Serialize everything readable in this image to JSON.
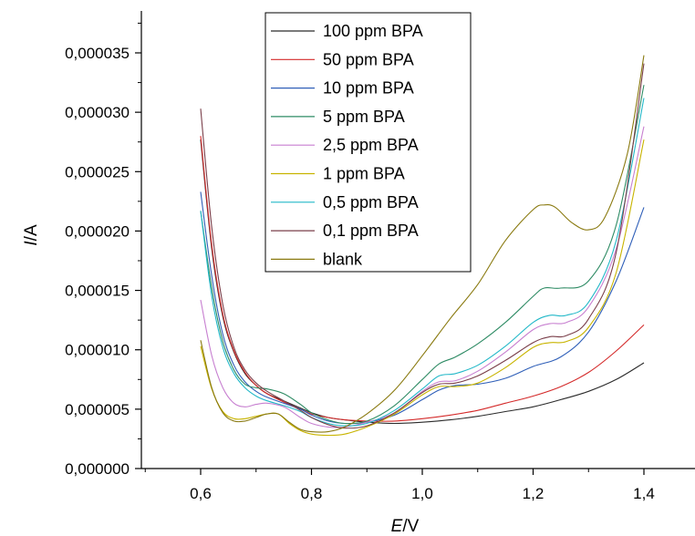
{
  "chart_data": {
    "type": "line",
    "xlabel_italic": "E",
    "xlabel_unit": "/V",
    "ylabel_italic": "I",
    "ylabel_unit": "/A",
    "xlim": [
      0.5,
      1.45
    ],
    "ylim": [
      0,
      3.85e-05
    ],
    "x_ticks": [
      0.6,
      0.8,
      1.0,
      1.2,
      1.4
    ],
    "x_tick_labels": [
      "0,6",
      "0,8",
      "1,0",
      "1,2",
      "1,4"
    ],
    "y_ticks": [
      0,
      5e-06,
      1e-05,
      1.5e-05,
      2e-05,
      2.5e-05,
      3e-05,
      3.5e-05
    ],
    "y_tick_labels": [
      "0,000000",
      "0,000005",
      "0,000010",
      "0,000015",
      "0,000020",
      "0,000025",
      "0,000030",
      "0,000035"
    ],
    "grid": false,
    "legend_position": "top-center",
    "series": [
      {
        "name": "100 ppm BPA",
        "color": "#2b2b2b",
        "points": [
          [
            0.6,
            2.77e-05
          ],
          [
            0.62,
            1.85e-05
          ],
          [
            0.64,
            1.28e-05
          ],
          [
            0.66,
            9.8e-06
          ],
          [
            0.68,
            8e-06
          ],
          [
            0.7,
            7e-06
          ],
          [
            0.72,
            6.3e-06
          ],
          [
            0.75,
            5.7e-06
          ],
          [
            0.78,
            5.1e-06
          ],
          [
            0.8,
            4.7e-06
          ],
          [
            0.83,
            4.3e-06
          ],
          [
            0.86,
            4.1e-06
          ],
          [
            0.9,
            3.9e-06
          ],
          [
            0.95,
            3.8e-06
          ],
          [
            1.0,
            3.9e-06
          ],
          [
            1.05,
            4.1e-06
          ],
          [
            1.1,
            4.4e-06
          ],
          [
            1.15,
            4.8e-06
          ],
          [
            1.2,
            5.2e-06
          ],
          [
            1.25,
            5.8e-06
          ],
          [
            1.3,
            6.5e-06
          ],
          [
            1.35,
            7.5e-06
          ],
          [
            1.4,
            8.9e-06
          ]
        ]
      },
      {
        "name": "50 ppm BPA",
        "color": "#d42a2a",
        "points": [
          [
            0.6,
            2.8e-05
          ],
          [
            0.62,
            1.88e-05
          ],
          [
            0.64,
            1.3e-05
          ],
          [
            0.66,
            9.9e-06
          ],
          [
            0.68,
            8.1e-06
          ],
          [
            0.7,
            7e-06
          ],
          [
            0.72,
            6.3e-06
          ],
          [
            0.75,
            5.6e-06
          ],
          [
            0.78,
            5e-06
          ],
          [
            0.8,
            4.6e-06
          ],
          [
            0.83,
            4.3e-06
          ],
          [
            0.86,
            4.1e-06
          ],
          [
            0.9,
            4e-06
          ],
          [
            0.95,
            4e-06
          ],
          [
            1.0,
            4.2e-06
          ],
          [
            1.05,
            4.5e-06
          ],
          [
            1.1,
            4.9e-06
          ],
          [
            1.15,
            5.5e-06
          ],
          [
            1.2,
            6.1e-06
          ],
          [
            1.25,
            6.9e-06
          ],
          [
            1.3,
            8.1e-06
          ],
          [
            1.35,
            9.9e-06
          ],
          [
            1.4,
            1.21e-05
          ]
        ]
      },
      {
        "name": "10 ppm BPA",
        "color": "#2f5fb8",
        "points": [
          [
            0.6,
            2.33e-05
          ],
          [
            0.62,
            1.62e-05
          ],
          [
            0.64,
            1.13e-05
          ],
          [
            0.66,
            8.7e-06
          ],
          [
            0.68,
            7.3e-06
          ],
          [
            0.7,
            6.5e-06
          ],
          [
            0.72,
            6e-06
          ],
          [
            0.75,
            5.5e-06
          ],
          [
            0.78,
            5e-06
          ],
          [
            0.8,
            4.5e-06
          ],
          [
            0.83,
            4e-06
          ],
          [
            0.86,
            3.8e-06
          ],
          [
            0.9,
            3.9e-06
          ],
          [
            0.95,
            4.5e-06
          ],
          [
            1.0,
            5.8e-06
          ],
          [
            1.03,
            6.6e-06
          ],
          [
            1.06,
            7e-06
          ],
          [
            1.1,
            7.1e-06
          ],
          [
            1.15,
            7.6e-06
          ],
          [
            1.2,
            8.6e-06
          ],
          [
            1.25,
            9.4e-06
          ],
          [
            1.3,
            1.15e-05
          ],
          [
            1.35,
            1.58e-05
          ],
          [
            1.4,
            2.2e-05
          ]
        ]
      },
      {
        "name": "5 ppm BPA",
        "color": "#2e8b64",
        "points": [
          [
            0.6,
            2.17e-05
          ],
          [
            0.62,
            1.52e-05
          ],
          [
            0.64,
            1.07e-05
          ],
          [
            0.66,
            8.3e-06
          ],
          [
            0.68,
            7.1e-06
          ],
          [
            0.7,
            6.8e-06
          ],
          [
            0.72,
            6.7e-06
          ],
          [
            0.75,
            6.3e-06
          ],
          [
            0.78,
            5.4e-06
          ],
          [
            0.8,
            4.7e-06
          ],
          [
            0.83,
            4.1e-06
          ],
          [
            0.86,
            3.8e-06
          ],
          [
            0.9,
            4e-06
          ],
          [
            0.95,
            5.3e-06
          ],
          [
            1.0,
            7.5e-06
          ],
          [
            1.03,
            8.8e-06
          ],
          [
            1.06,
            9.4e-06
          ],
          [
            1.1,
            1.05e-05
          ],
          [
            1.15,
            1.23e-05
          ],
          [
            1.2,
            1.45e-05
          ],
          [
            1.22,
            1.52e-05
          ],
          [
            1.25,
            1.52e-05
          ],
          [
            1.3,
            1.58e-05
          ],
          [
            1.35,
            2.05e-05
          ],
          [
            1.4,
            3.23e-05
          ]
        ]
      },
      {
        "name": "2,5 ppm BPA",
        "color": "#c77fd0",
        "points": [
          [
            0.6,
            1.42e-05
          ],
          [
            0.62,
            9.5e-06
          ],
          [
            0.64,
            6.8e-06
          ],
          [
            0.66,
            5.5e-06
          ],
          [
            0.68,
            5.2e-06
          ],
          [
            0.7,
            5.4e-06
          ],
          [
            0.72,
            5.5e-06
          ],
          [
            0.75,
            5.2e-06
          ],
          [
            0.78,
            4.3e-06
          ],
          [
            0.8,
            3.8e-06
          ],
          [
            0.83,
            3.5e-06
          ],
          [
            0.86,
            3.5e-06
          ],
          [
            0.9,
            3.9e-06
          ],
          [
            0.95,
            4.7e-06
          ],
          [
            1.0,
            6.5e-06
          ],
          [
            1.03,
            7.3e-06
          ],
          [
            1.06,
            7.4e-06
          ],
          [
            1.1,
            8.2e-06
          ],
          [
            1.15,
            9.8e-06
          ],
          [
            1.2,
            1.17e-05
          ],
          [
            1.23,
            1.22e-05
          ],
          [
            1.26,
            1.23e-05
          ],
          [
            1.3,
            1.36e-05
          ],
          [
            1.35,
            1.85e-05
          ],
          [
            1.4,
            2.88e-05
          ]
        ]
      },
      {
        "name": "1 ppm BPA",
        "color": "#c8b400",
        "points": [
          [
            0.6,
            1.03e-05
          ],
          [
            0.62,
            6.7e-06
          ],
          [
            0.64,
            4.8e-06
          ],
          [
            0.66,
            4.2e-06
          ],
          [
            0.68,
            4.2e-06
          ],
          [
            0.7,
            4.4e-06
          ],
          [
            0.72,
            4.6e-06
          ],
          [
            0.74,
            4.6e-06
          ],
          [
            0.76,
            3.8e-06
          ],
          [
            0.78,
            3.2e-06
          ],
          [
            0.8,
            2.9e-06
          ],
          [
            0.83,
            2.8e-06
          ],
          [
            0.86,
            2.9e-06
          ],
          [
            0.9,
            3.5e-06
          ],
          [
            0.95,
            4.6e-06
          ],
          [
            1.0,
            6.2e-06
          ],
          [
            1.03,
            6.9e-06
          ],
          [
            1.06,
            6.9e-06
          ],
          [
            1.1,
            7.2e-06
          ],
          [
            1.15,
            8.5e-06
          ],
          [
            1.2,
            1.02e-05
          ],
          [
            1.23,
            1.06e-05
          ],
          [
            1.26,
            1.07e-05
          ],
          [
            1.3,
            1.19e-05
          ],
          [
            1.35,
            1.65e-05
          ],
          [
            1.4,
            2.77e-05
          ]
        ]
      },
      {
        "name": "0,5 ppm BPA",
        "color": "#22b8c8",
        "points": [
          [
            0.6,
            2.17e-05
          ],
          [
            0.62,
            1.45e-05
          ],
          [
            0.64,
            1.02e-05
          ],
          [
            0.66,
            8e-06
          ],
          [
            0.68,
            6.8e-06
          ],
          [
            0.7,
            6.1e-06
          ],
          [
            0.72,
            5.7e-06
          ],
          [
            0.75,
            5.3e-06
          ],
          [
            0.78,
            4.8e-06
          ],
          [
            0.8,
            4.3e-06
          ],
          [
            0.83,
            3.8e-06
          ],
          [
            0.86,
            3.6e-06
          ],
          [
            0.9,
            3.8e-06
          ],
          [
            0.95,
            4.9e-06
          ],
          [
            1.0,
            6.7e-06
          ],
          [
            1.03,
            7.8e-06
          ],
          [
            1.06,
            8e-06
          ],
          [
            1.1,
            8.7e-06
          ],
          [
            1.15,
            1.03e-05
          ],
          [
            1.2,
            1.23e-05
          ],
          [
            1.23,
            1.29e-05
          ],
          [
            1.26,
            1.29e-05
          ],
          [
            1.3,
            1.4e-05
          ],
          [
            1.35,
            1.92e-05
          ],
          [
            1.4,
            3.12e-05
          ]
        ]
      },
      {
        "name": "0,1 ppm BPA",
        "color": "#7a3f4a",
        "points": [
          [
            0.6,
            3.03e-05
          ],
          [
            0.62,
            2.03e-05
          ],
          [
            0.64,
            1.38e-05
          ],
          [
            0.66,
            1.02e-05
          ],
          [
            0.68,
            8.3e-06
          ],
          [
            0.7,
            7.2e-06
          ],
          [
            0.72,
            6.5e-06
          ],
          [
            0.75,
            5.7e-06
          ],
          [
            0.78,
            4.9e-06
          ],
          [
            0.8,
            4.3e-06
          ],
          [
            0.83,
            3.7e-06
          ],
          [
            0.86,
            3.4e-06
          ],
          [
            0.9,
            3.6e-06
          ],
          [
            0.95,
            4.7e-06
          ],
          [
            1.0,
            6.4e-06
          ],
          [
            1.03,
            7.1e-06
          ],
          [
            1.06,
            7.2e-06
          ],
          [
            1.1,
            7.8e-06
          ],
          [
            1.15,
            9.1e-06
          ],
          [
            1.2,
            1.06e-05
          ],
          [
            1.23,
            1.11e-05
          ],
          [
            1.26,
            1.12e-05
          ],
          [
            1.3,
            1.26e-05
          ],
          [
            1.35,
            1.82e-05
          ],
          [
            1.4,
            3.41e-05
          ]
        ]
      },
      {
        "name": "blank",
        "color": "#8a7a10",
        "points": [
          [
            0.6,
            1.08e-05
          ],
          [
            0.62,
            6.8e-06
          ],
          [
            0.64,
            4.7e-06
          ],
          [
            0.66,
            4e-06
          ],
          [
            0.68,
            4e-06
          ],
          [
            0.7,
            4.3e-06
          ],
          [
            0.72,
            4.6e-06
          ],
          [
            0.74,
            4.6e-06
          ],
          [
            0.76,
            3.9e-06
          ],
          [
            0.78,
            3.3e-06
          ],
          [
            0.8,
            3.1e-06
          ],
          [
            0.83,
            3.1e-06
          ],
          [
            0.86,
            3.5e-06
          ],
          [
            0.9,
            4.6e-06
          ],
          [
            0.95,
            6.6e-06
          ],
          [
            1.0,
            9.5e-06
          ],
          [
            1.05,
            1.26e-05
          ],
          [
            1.1,
            1.55e-05
          ],
          [
            1.15,
            1.92e-05
          ],
          [
            1.2,
            2.18e-05
          ],
          [
            1.22,
            2.22e-05
          ],
          [
            1.24,
            2.2e-05
          ],
          [
            1.27,
            2.07e-05
          ],
          [
            1.3,
            2.01e-05
          ],
          [
            1.33,
            2.12e-05
          ],
          [
            1.37,
            2.65e-05
          ],
          [
            1.4,
            3.48e-05
          ]
        ]
      }
    ]
  }
}
